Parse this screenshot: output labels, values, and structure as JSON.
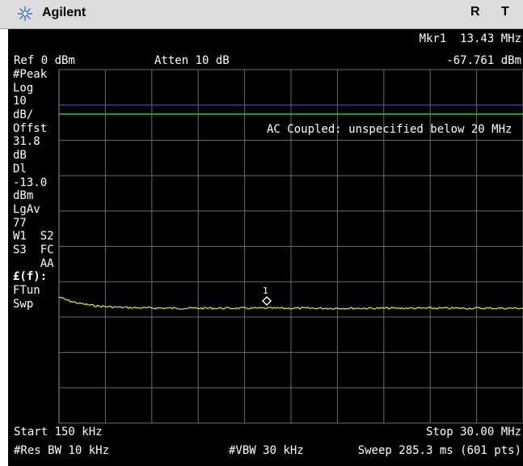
{
  "header": {
    "brand": "Agilent",
    "status_r": "R",
    "status_t": "T"
  },
  "marker": {
    "label": "Mkr1",
    "freq": "13.43 MHz",
    "amp": "-67.761 dBm",
    "number": "1"
  },
  "settings": {
    "ref": "Ref 0 dBm",
    "atten": "Atten 10 dB",
    "annotation": "AC Coupled: unspecified below 20 MHz",
    "start": "Start 150 kHz",
    "stop": "Stop 30.00 MHz",
    "res_bw": "#Res BW 10 kHz",
    "vbw": "#VBW 30 kHz",
    "sweep": "Sweep 285.3 ms (601 pts)"
  },
  "left_panel": {
    "detector": "#Peak",
    "scale": "Log",
    "scale_val": "10",
    "scale_unit": "dB/",
    "offset_label": "Offst",
    "offset_val": "31.8",
    "offset_unit": "dB",
    "dl_label": "Dl",
    "dl_val": "-13.0",
    "dl_unit": "dBm",
    "avg_label": "LgAv",
    "avg_val": "77",
    "traces_1": "W1  S2",
    "traces_2": "S3  FC",
    "traces_3": "    AA",
    "func": "£(f):",
    "ftun": "FTun",
    "swp": "Swp"
  },
  "colors": {
    "screen_bg": "#000000",
    "grid": "#6b6b6b",
    "trace": "#e8e83a",
    "display_line": "#22cc22",
    "ref_line": "#3a3ad0"
  }
}
